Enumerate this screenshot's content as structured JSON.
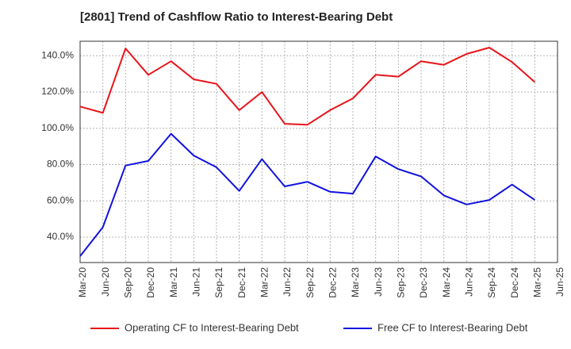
{
  "chart_data": {
    "type": "line",
    "title": "[2801]  Trend of Cashflow Ratio to Interest-Bearing Debt",
    "xlabel": "",
    "ylabel": "",
    "x": [
      "Mar-20",
      "Jun-20",
      "Sep-20",
      "Dec-20",
      "Mar-21",
      "Jun-21",
      "Sep-21",
      "Dec-21",
      "Mar-22",
      "Jun-22",
      "Sep-22",
      "Dec-22",
      "Mar-23",
      "Jun-23",
      "Sep-23",
      "Dec-23",
      "Mar-24",
      "Jun-24",
      "Sep-24",
      "Dec-24",
      "Mar-25",
      "Jun-25"
    ],
    "ylim": [
      26,
      148
    ],
    "yticks": [
      40,
      60,
      80,
      100,
      120,
      140
    ],
    "ytick_suffix": ".0%",
    "grid": true,
    "legend_position": "bottom",
    "series": [
      {
        "name": "Operating CF to Interest-Bearing Debt",
        "color": "#e8141a",
        "values": [
          112.0,
          108.5,
          144.0,
          129.5,
          137.0,
          127.0,
          124.5,
          110.0,
          120.0,
          102.5,
          102.0,
          110.0,
          116.5,
          129.5,
          128.5,
          137.0,
          135.0,
          141.0,
          144.5,
          136.5,
          125.5,
          null
        ]
      },
      {
        "name": "Free CF to Interest-Bearing Debt",
        "color": "#1212e0",
        "values": [
          29.5,
          45.5,
          79.5,
          82.0,
          97.0,
          85.0,
          78.5,
          65.5,
          83.0,
          68.0,
          70.5,
          65.0,
          64.0,
          84.5,
          77.5,
          73.5,
          63.0,
          58.0,
          60.5,
          69.0,
          60.5,
          null
        ]
      }
    ]
  }
}
